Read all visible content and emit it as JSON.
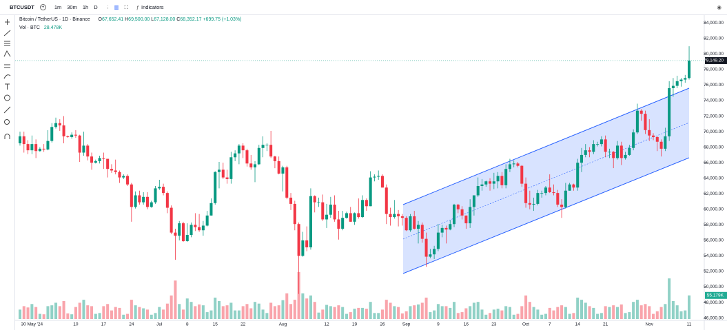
{
  "toolbar": {
    "symbol": "BTCUSDT",
    "intervals": [
      "1m",
      "30m",
      "1h",
      "D"
    ],
    "indicators": "Indicators"
  },
  "legend": {
    "title": "Bitcoin / TetherUS · 1D · Binance",
    "ohlc": [
      {
        "key": "O",
        "value": "67,652.41"
      },
      {
        "key": "H",
        "value": "69,500.00"
      },
      {
        "key": "L",
        "value": "67,128.00"
      },
      {
        "key": "C",
        "value": "68,352.17"
      }
    ],
    "change": "+699.75 (+1.03%)",
    "volume_label": "Vol · BTC",
    "volume_value": "28.478K"
  },
  "chart_data": {
    "type": "candlestick",
    "categories": [
      null,
      null,
      null,
      "30 May '24",
      null,
      null,
      null,
      null,
      null,
      null,
      null,
      null,
      null,
      null,
      "10",
      null,
      null,
      null,
      null,
      null,
      null,
      "17",
      null,
      null,
      null,
      null,
      null,
      null,
      "24",
      null,
      null,
      null,
      null,
      null,
      null,
      "Jul",
      null,
      null,
      null,
      null,
      null,
      null,
      "8",
      null,
      null,
      null,
      null,
      null,
      null,
      "15",
      null,
      null,
      null,
      null,
      null,
      null,
      "22",
      null,
      null,
      null,
      null,
      null,
      null,
      null,
      null,
      null,
      "Aug",
      null,
      null,
      null,
      null,
      null,
      null,
      null,
      null,
      null,
      null,
      "12",
      null,
      null,
      null,
      null,
      null,
      null,
      "19",
      null,
      null,
      null,
      null,
      null,
      null,
      "26",
      null,
      null,
      null,
      null,
      null,
      "Sep",
      null,
      null,
      null,
      null,
      null,
      null,
      null,
      "9",
      null,
      null,
      null,
      null,
      null,
      null,
      "16",
      null,
      null,
      null,
      null,
      null,
      null,
      "23",
      null,
      null,
      null,
      null,
      null,
      null,
      null,
      "Oct",
      null,
      null,
      null,
      null,
      null,
      "7",
      null,
      null,
      null,
      null,
      null,
      null,
      "14",
      null,
      null,
      null,
      null,
      null,
      null,
      "21",
      null,
      null,
      null,
      null,
      null,
      null,
      null,
      null,
      null,
      null,
      "Nov",
      null,
      null,
      null,
      null,
      null,
      null,
      null,
      null,
      null,
      "11"
    ],
    "open": [
      68500,
      69400,
      68400,
      67600,
      68400,
      67500,
      67800,
      67700,
      68800,
      70600,
      71100,
      70800,
      69400,
      69300,
      69600,
      69500,
      67300,
      68200,
      66800,
      66000,
      66200,
      66600,
      66500,
      65200,
      65000,
      64800,
      64100,
      64300,
      63200,
      60300,
      61800,
      60900,
      61600,
      60300,
      60900,
      62700,
      62900,
      62100,
      60200,
      57000,
      56600,
      58200,
      55900,
      56700,
      58000,
      57700,
      57300,
      57900,
      59200,
      60800,
      64800,
      65100,
      64100,
      63900,
      66700,
      67200,
      68200,
      67600,
      65900,
      65400,
      65800,
      67900,
      68300,
      68300,
      66800,
      66200,
      64600,
      65400,
      61500,
      60700,
      58100,
      54000,
      56000,
      55100,
      61700,
      60900,
      60900,
      58700,
      59300,
      60600,
      58700,
      57500,
      58900,
      59500,
      58400,
      59500,
      59000,
      61200,
      60400,
      64100,
      64200,
      64300,
      62800,
      59400,
      59000,
      59400,
      59100,
      58900,
      57300,
      59100,
      57500,
      58000,
      56200,
      53900,
      54200,
      54900,
      57000,
      57600,
      57400,
      58100,
      60600,
      60000,
      59200,
      58200,
      60300,
      61800,
      63000,
      63200,
      63600,
      63300,
      63600,
      64300,
      63100,
      65200,
      65800,
      65900,
      65600,
      63300,
      60800,
      60600,
      60700,
      62100,
      62100,
      62800,
      62200,
      62100,
      60600,
      60300,
      62400,
      63200,
      62800,
      66000,
      67000,
      67600,
      67400,
      68400,
      68400,
      69000,
      67400,
      67400,
      66600,
      68200,
      66600,
      67000,
      67900,
      69900,
      72700,
      72300,
      70200,
      69500,
      69300,
      68700,
      67800,
      69400,
      75600,
      75900,
      76500,
      76700,
      76900
    ],
    "high": [
      70000,
      70000,
      68900,
      69500,
      69000,
      68000,
      68400,
      70200,
      71100,
      71800,
      71600,
      72000,
      69500,
      69900,
      70200,
      69600,
      70000,
      68400,
      67300,
      66400,
      66900,
      67300,
      66500,
      65800,
      66400,
      65000,
      64500,
      64500,
      63400,
      62300,
      62400,
      62200,
      62200,
      61100,
      63000,
      63800,
      63300,
      62300,
      60500,
      57500,
      58500,
      58400,
      58200,
      58300,
      59500,
      59400,
      58500,
      59800,
      61400,
      64900,
      66100,
      66000,
      65100,
      67400,
      67600,
      68400,
      68500,
      67800,
      67000,
      66200,
      68300,
      69400,
      68500,
      70100,
      66900,
      66800,
      65600,
      65600,
      62100,
      61100,
      58300,
      57100,
      57800,
      62700,
      61800,
      61500,
      61900,
      60700,
      61600,
      61800,
      59800,
      59800,
      59700,
      60300,
      59600,
      61400,
      61800,
      61400,
      64900,
      64500,
      65000,
      64500,
      63200,
      60200,
      61200,
      59900,
      59400,
      59100,
      59400,
      59800,
      58500,
      58300,
      57000,
      54900,
      55300,
      58100,
      58000,
      57900,
      58600,
      60700,
      60700,
      60400,
      59200,
      61300,
      61800,
      64100,
      63900,
      63700,
      64000,
      64700,
      64800,
      64800,
      65800,
      66500,
      66300,
      66100,
      65700,
      64100,
      62400,
      61500,
      62500,
      62400,
      63000,
      64500,
      63200,
      62500,
      61300,
      63400,
      63400,
      63300,
      66500,
      67900,
      68400,
      68000,
      68900,
      68700,
      69400,
      69500,
      67800,
      67500,
      68800,
      68700,
      67400,
      68300,
      70300,
      73600,
      72900,
      72700,
      71600,
      69800,
      69400,
      69000,
      70500,
      76500,
      76900,
      77200,
      76900,
      77300,
      81000
    ],
    "low": [
      68200,
      67300,
      67100,
      67100,
      66600,
      67400,
      67400,
      67600,
      68600,
      70400,
      70100,
      68500,
      69200,
      69100,
      69200,
      66100,
      66900,
      66300,
      65100,
      65900,
      65900,
      65200,
      64100,
      64700,
      64500,
      63400,
      63900,
      63000,
      58400,
      60100,
      60600,
      60600,
      60000,
      60200,
      60700,
      62500,
      61800,
      59500,
      56800,
      53500,
      56000,
      55800,
      55800,
      56400,
      57200,
      57100,
      56600,
      57800,
      59200,
      60600,
      62700,
      63900,
      63300,
      63300,
      66200,
      65800,
      66600,
      65500,
      65100,
      63500,
      65700,
      66700,
      67500,
      66600,
      65300,
      64500,
      62300,
      61300,
      59900,
      57300,
      49100,
      53900,
      54600,
      54800,
      59600,
      60300,
      58500,
      57600,
      58900,
      58400,
      56100,
      57300,
      58800,
      58400,
      58000,
      58800,
      58900,
      59800,
      60400,
      63600,
      63800,
      62800,
      58100,
      57900,
      58800,
      57800,
      57900,
      57200,
      57100,
      57400,
      55600,
      55700,
      52600,
      53700,
      53600,
      54600,
      56400,
      55600,
      57300,
      57700,
      59500,
      58700,
      57500,
      57600,
      59200,
      61600,
      62400,
      62900,
      62400,
      62600,
      62700,
      62700,
      62700,
      64800,
      65400,
      65400,
      62900,
      60200,
      60000,
      59800,
      60500,
      61500,
      61800,
      62100,
      61800,
      60300,
      58900,
      60100,
      62400,
      62400,
      62400,
      64800,
      66700,
      66700,
      67100,
      68100,
      68100,
      66700,
      66600,
      65300,
      66400,
      65700,
      66400,
      66900,
      67600,
      69700,
      71400,
      69700,
      68800,
      68900,
      67500,
      66800,
      67500,
      68800,
      74500,
      75600,
      75800,
      76300,
      76700
    ],
    "close": [
      69400,
      68400,
      67600,
      68400,
      67500,
      67800,
      67700,
      68800,
      70600,
      71100,
      70800,
      69400,
      69300,
      69600,
      69500,
      67300,
      68200,
      66800,
      66000,
      66200,
      66600,
      66500,
      65200,
      65000,
      64800,
      64100,
      64300,
      63200,
      60300,
      61800,
      60900,
      61600,
      60300,
      60900,
      62700,
      62900,
      62100,
      60200,
      57000,
      56600,
      58200,
      55900,
      56700,
      58000,
      57700,
      57300,
      57900,
      59200,
      60800,
      64800,
      65100,
      64100,
      63900,
      66700,
      67200,
      68200,
      67600,
      65900,
      65400,
      65800,
      67900,
      68300,
      68300,
      66800,
      66200,
      64600,
      65400,
      61500,
      60700,
      58100,
      54000,
      56000,
      55100,
      61700,
      60900,
      60900,
      58700,
      59300,
      60600,
      58700,
      57500,
      58900,
      59500,
      58400,
      59500,
      59000,
      61200,
      60400,
      64100,
      64200,
      64300,
      62800,
      59400,
      59000,
      59400,
      59100,
      58900,
      57300,
      59100,
      57500,
      58000,
      56200,
      53900,
      54200,
      54900,
      57000,
      57600,
      57400,
      58100,
      60600,
      60000,
      59200,
      58200,
      60300,
      61800,
      63000,
      63200,
      63600,
      63300,
      63600,
      64300,
      63100,
      65200,
      65800,
      65900,
      65600,
      63300,
      60800,
      60600,
      60700,
      62100,
      62100,
      62800,
      62200,
      62100,
      60600,
      60300,
      62400,
      63200,
      62800,
      66000,
      67000,
      67600,
      67400,
      68400,
      68400,
      69000,
      67400,
      67400,
      66600,
      68200,
      66600,
      67000,
      67900,
      69900,
      72700,
      72300,
      70200,
      69500,
      69300,
      68700,
      67800,
      69400,
      75600,
      75900,
      76500,
      76700,
      76900,
      79149.2
    ],
    "volume": [
      22,
      30,
      27,
      35,
      28,
      12,
      11,
      30,
      32,
      38,
      30,
      42,
      13,
      11,
      28,
      38,
      45,
      32,
      30,
      12,
      14,
      30,
      35,
      20,
      28,
      26,
      10,
      12,
      45,
      32,
      28,
      25,
      22,
      10,
      14,
      28,
      22,
      36,
      55,
      90,
      35,
      22,
      48,
      40,
      30,
      34,
      32,
      16,
      20,
      50,
      42,
      30,
      32,
      38,
      20,
      20,
      30,
      35,
      25,
      40,
      36,
      22,
      14,
      38,
      30,
      32,
      44,
      60,
      35,
      45,
      110,
      60,
      48,
      55,
      40,
      15,
      22,
      33,
      30,
      28,
      32,
      28,
      12,
      16,
      24,
      26,
      26,
      24,
      40,
      14,
      14,
      22,
      45,
      38,
      30,
      28,
      13,
      18,
      30,
      32,
      34,
      38,
      50,
      16,
      20,
      35,
      30,
      30,
      26,
      40,
      14,
      16,
      25,
      30,
      38,
      40,
      22,
      10,
      14,
      22,
      24,
      20,
      30,
      28,
      10,
      12,
      30,
      55,
      40,
      28,
      22,
      10,
      12,
      26,
      20,
      28,
      32,
      28,
      12,
      14,
      50,
      45,
      38,
      30,
      26,
      12,
      14,
      30,
      28,
      32,
      28,
      34,
      14,
      16,
      40,
      45,
      32,
      35,
      30,
      12,
      18,
      28,
      35,
      95,
      42,
      32,
      18,
      20,
      55.179
    ],
    "up_color": "#089981",
    "down_color": "#f23645",
    "ylim": [
      45700,
      85000
    ],
    "yticks": [
      {
        "value": 84000,
        "label": "84,000.00"
      },
      {
        "value": 82000,
        "label": "82,000.00"
      },
      {
        "value": 80000,
        "label": "80,000.00"
      },
      {
        "value": 78000,
        "label": "78,000.00"
      },
      {
        "value": 76000,
        "label": "76,000.00"
      },
      {
        "value": 74000,
        "label": "74,000.00"
      },
      {
        "value": 72000,
        "label": "72,000.00"
      },
      {
        "value": 70000,
        "label": "70,000.00"
      },
      {
        "value": 68000,
        "label": "68,000.00"
      },
      {
        "value": 66000,
        "label": "66,000.00"
      },
      {
        "value": 64000,
        "label": "64,000.00"
      },
      {
        "value": 62000,
        "label": "62,000.00"
      },
      {
        "value": 60000,
        "label": "60,000.00"
      },
      {
        "value": 58000,
        "label": "58,000.00"
      },
      {
        "value": 56000,
        "label": "56,000.00"
      },
      {
        "value": 54000,
        "label": "54,000.00"
      },
      {
        "value": 52000,
        "label": "52,000.00"
      },
      {
        "value": 50000,
        "label": "50,000.00"
      },
      {
        "value": 48000,
        "label": "48,000.00"
      },
      {
        "value": 46000,
        "label": "46,000.00"
      }
    ],
    "grid": false,
    "last_price": {
      "value": 79149.2,
      "label": "79,149.20"
    },
    "volume_badge": {
      "value": 55.179,
      "label": "55.179K"
    }
  }
}
